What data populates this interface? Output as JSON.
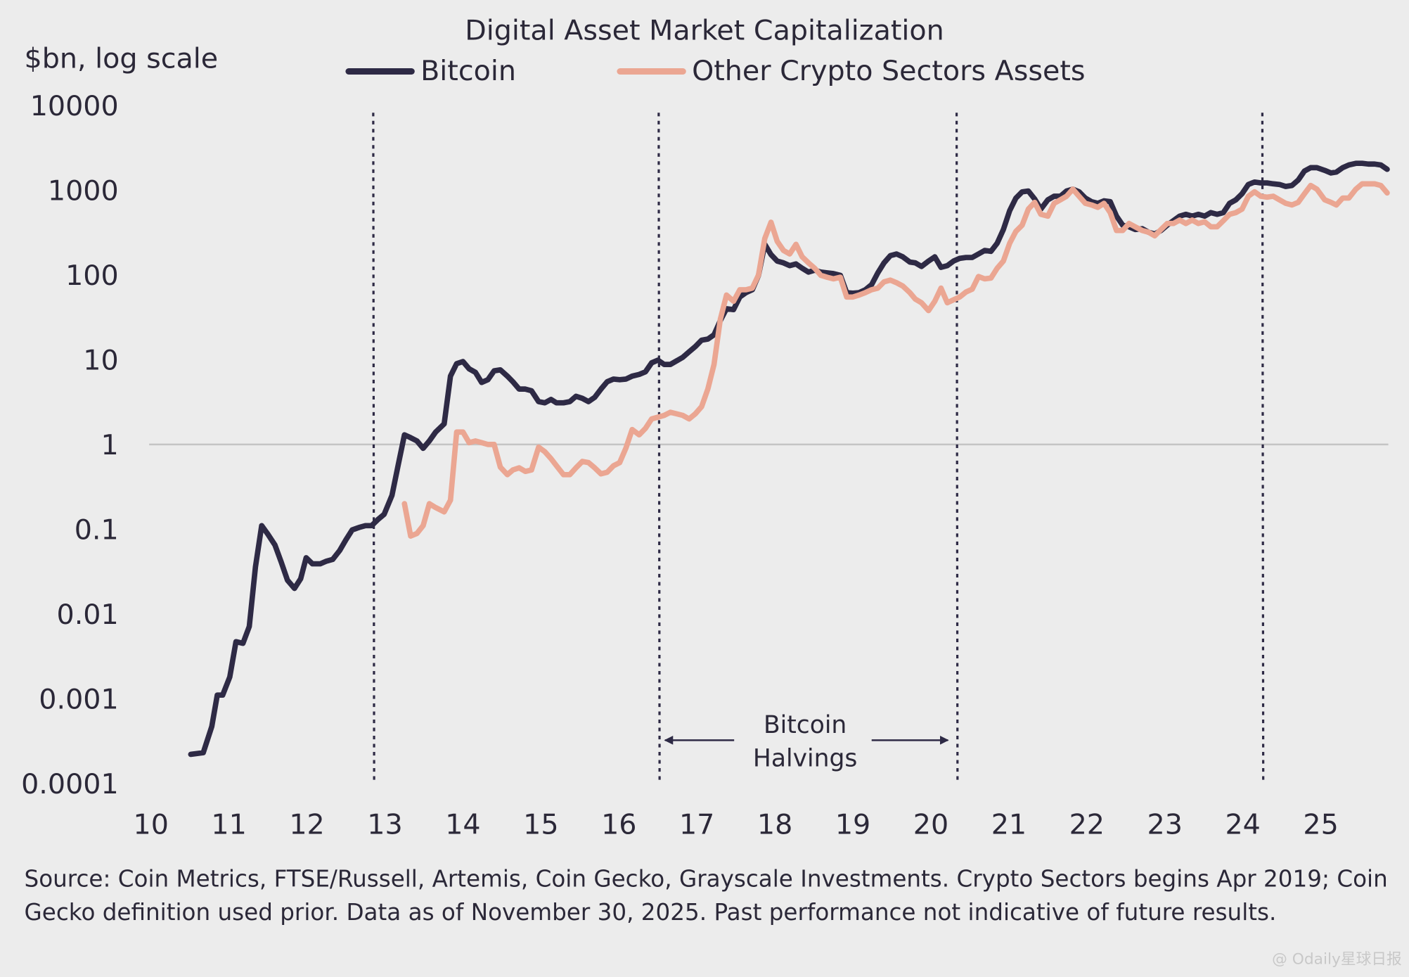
{
  "chart_data": {
    "type": "line",
    "title": "Digital Asset Market Capitalization",
    "y_label": "$bn, log scale",
    "log_scale": true,
    "x": [
      10.51,
      10.67,
      10.78,
      10.85,
      10.92,
      11.01,
      11.09,
      11.18,
      11.26,
      11.34,
      11.42,
      11.5,
      11.59,
      11.67,
      11.75,
      11.84,
      11.92,
      11.99,
      12.07,
      12.17,
      12.25,
      12.33,
      12.42,
      12.5,
      12.58,
      12.67,
      12.75,
      12.83,
      12.91,
      12.99,
      13.09,
      13.17,
      13.25,
      13.33,
      13.41,
      13.49,
      13.57,
      13.65,
      13.76,
      13.84,
      13.92,
      14.0,
      14.08,
      14.16,
      14.24,
      14.32,
      14.4,
      14.48,
      14.57,
      14.64,
      14.72,
      14.8,
      14.88,
      14.97,
      15.05,
      15.13,
      15.2,
      15.29,
      15.37,
      15.45,
      15.53,
      15.61,
      15.69,
      15.77,
      15.85,
      15.93,
      16.01,
      16.09,
      16.17,
      16.26,
      16.34,
      16.42,
      16.5,
      16.58,
      16.66,
      16.74,
      16.82,
      16.9,
      16.98,
      17.06,
      17.14,
      17.22,
      17.3,
      17.38,
      17.47,
      17.55,
      17.63,
      17.71,
      17.79,
      17.87,
      17.95,
      18.03,
      18.11,
      18.19,
      18.27,
      18.35,
      18.43,
      18.51,
      18.59,
      18.67,
      18.75,
      18.84,
      18.92,
      19.0,
      19.08,
      19.16,
      19.24,
      19.32,
      19.4,
      19.48,
      19.56,
      19.64,
      19.73,
      19.8,
      19.88,
      19.97,
      20.05,
      20.13,
      20.21,
      20.29,
      20.37,
      20.45,
      20.53,
      20.61,
      20.69,
      20.77,
      20.85,
      20.93,
      21.01,
      21.09,
      21.17,
      21.25,
      21.33,
      21.41,
      21.5,
      21.58,
      21.66,
      21.74,
      21.82,
      21.9,
      21.98,
      22.06,
      22.14,
      22.22,
      22.3,
      22.38,
      22.46,
      22.54,
      22.62,
      22.71,
      22.79,
      22.87,
      22.95,
      23.03,
      23.11,
      23.19,
      23.27,
      23.35,
      23.43,
      23.51,
      23.59,
      23.67,
      23.75,
      23.83,
      23.91,
      23.99,
      24.07,
      24.15,
      24.23,
      24.31,
      24.39,
      24.47,
      24.55,
      24.63,
      24.71,
      24.79,
      24.87,
      24.95,
      25.05,
      25.13,
      25.2,
      25.28,
      25.36,
      25.45,
      25.53,
      25.61,
      25.69,
      25.77,
      25.85
    ],
    "series": [
      {
        "name": "Bitcoin",
        "color": "#2e2a45",
        "values": [
          0.00022,
          0.00023,
          0.00047,
          0.0011,
          0.0011,
          0.0018,
          0.0047,
          0.0045,
          0.0071,
          0.036,
          0.11,
          0.087,
          0.065,
          0.041,
          0.025,
          0.02,
          0.026,
          0.046,
          0.039,
          0.039,
          0.042,
          0.044,
          0.056,
          0.075,
          0.098,
          0.105,
          0.11,
          0.11,
          0.13,
          0.15,
          0.25,
          0.57,
          1.3,
          1.2,
          1.1,
          0.9,
          1.1,
          1.4,
          1.75,
          6.4,
          9.0,
          9.5,
          7.8,
          7.1,
          5.4,
          5.8,
          7.4,
          7.6,
          6.4,
          5.5,
          4.5,
          4.5,
          4.3,
          3.2,
          3.1,
          3.4,
          3.1,
          3.1,
          3.2,
          3.7,
          3.5,
          3.2,
          3.6,
          4.5,
          5.5,
          5.9,
          5.8,
          5.9,
          6.4,
          6.7,
          7.2,
          9.2,
          9.9,
          8.8,
          8.8,
          9.7,
          10.7,
          12.4,
          14.3,
          17,
          17.5,
          19.7,
          29,
          40,
          39,
          55,
          62,
          67,
          99,
          230,
          174,
          146,
          139,
          129,
          135,
          120,
          108,
          114,
          108,
          106,
          104,
          99,
          62,
          61,
          62,
          67,
          77,
          106,
          139,
          169,
          177,
          164,
          142,
          139,
          126,
          146,
          164,
          123,
          129,
          146,
          157,
          161,
          161,
          177,
          195,
          190,
          237,
          344,
          573,
          807,
          958,
          980,
          790,
          600,
          770,
          850,
          850,
          980,
          1030,
          960,
          810,
          735,
          700,
          750,
          735,
          495,
          387,
          370,
          344,
          352,
          320,
          305,
          335,
          387,
          437,
          495,
          520,
          495,
          520,
          495,
          545,
          520,
          545,
          700,
          770,
          910,
          1170,
          1250,
          1220,
          1220,
          1190,
          1170,
          1110,
          1140,
          1320,
          1690,
          1850,
          1850,
          1720,
          1600,
          1640,
          1850,
          1990,
          2080,
          2080,
          2040,
          2040,
          1990,
          1770
        ]
      },
      {
        "name": "Other Crypto Sectors Assets",
        "color": "#eba692",
        "values": [
          null,
          null,
          null,
          null,
          null,
          null,
          null,
          null,
          null,
          null,
          null,
          null,
          null,
          null,
          null,
          null,
          null,
          null,
          null,
          null,
          null,
          null,
          null,
          null,
          null,
          null,
          null,
          null,
          null,
          null,
          null,
          null,
          0.2,
          0.083,
          0.089,
          0.11,
          0.2,
          0.18,
          0.16,
          0.22,
          1.4,
          1.4,
          1.05,
          1.1,
          1.05,
          1.0,
          1.0,
          0.54,
          0.44,
          0.5,
          0.53,
          0.48,
          0.5,
          0.93,
          0.82,
          0.68,
          0.56,
          0.44,
          0.44,
          0.53,
          0.63,
          0.61,
          0.53,
          0.45,
          0.47,
          0.56,
          0.61,
          0.91,
          1.5,
          1.3,
          1.55,
          2.0,
          2.1,
          2.2,
          2.4,
          2.3,
          2.2,
          2.0,
          2.3,
          2.8,
          4.5,
          8.8,
          30,
          58,
          49,
          67,
          67,
          70,
          100,
          270,
          420,
          250,
          195,
          177,
          230,
          164,
          139,
          120,
          99,
          94,
          90,
          94,
          55,
          55,
          58,
          62,
          67,
          70,
          83,
          87,
          81,
          74,
          62,
          52,
          47,
          38,
          49,
          70,
          47,
          51,
          55,
          63,
          68,
          96,
          90,
          92,
          120,
          146,
          237,
          327,
          387,
          600,
          720,
          520,
          495,
          700,
          770,
          850,
          1030,
          850,
          700,
          670,
          630,
          700,
          545,
          335,
          335,
          405,
          370,
          335,
          320,
          290,
          344,
          405,
          405,
          445,
          405,
          445,
          405,
          425,
          370,
          370,
          437,
          520,
          545,
          600,
          850,
          960,
          850,
          830,
          850,
          770,
          700,
          670,
          720,
          910,
          1140,
          1030,
          770,
          720,
          670,
          810,
          810,
          1030,
          1190,
          1190,
          1190,
          1140,
          930
        ]
      }
    ],
    "xlim": [
      10,
      25.9
    ],
    "xticks": [
      10,
      11,
      12,
      13,
      14,
      15,
      16,
      17,
      18,
      19,
      20,
      21,
      22,
      23,
      24,
      25
    ],
    "ylim": [
      0.0001,
      10000
    ],
    "yticks": [
      10000,
      1000,
      100,
      10,
      1,
      0.1,
      0.01,
      0.001,
      0.0001
    ],
    "hline": 1,
    "vlines": [
      12.85,
      16.51,
      20.33,
      24.25
    ],
    "annotation": "Bitcoin Halvings",
    "legend": "top",
    "footnote": "Source: Coin Metrics, FTSE/Russell, Artemis, Coin Gecko, Grayscale Investments. Crypto Sectors begins Apr 2019; Coin Gecko definition used prior. Data as of November 30, 2025. Past performance not indicative of future results.",
    "watermark": "@ Odaily星球日报"
  }
}
